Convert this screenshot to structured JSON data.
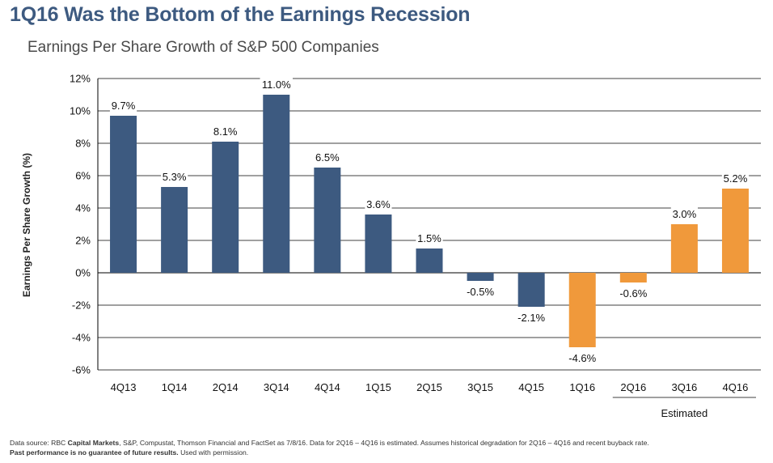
{
  "header": {
    "title": "1Q16 Was the Bottom of the Earnings Recession",
    "subtitle": "Earnings Per Share Growth of S&P 500 Companies"
  },
  "chart_data": {
    "type": "bar",
    "ylabel": "Earnings Per Share Growth (%)",
    "xlabel": "",
    "ylim": [
      -6,
      12
    ],
    "ytick_step": 2,
    "grid": "horizontal",
    "categories": [
      "4Q13",
      "1Q14",
      "2Q14",
      "3Q14",
      "4Q14",
      "1Q15",
      "2Q15",
      "3Q15",
      "4Q15",
      "1Q16",
      "2Q16",
      "3Q16",
      "4Q16"
    ],
    "values": [
      9.7,
      5.3,
      8.1,
      11.0,
      6.5,
      3.6,
      1.5,
      -0.5,
      -2.1,
      -4.6,
      -0.6,
      3.0,
      5.2
    ],
    "labels": [
      "9.7%",
      "5.3%",
      "8.1%",
      "11.0%",
      "6.5%",
      "3.6%",
      "1.5%",
      "-0.5%",
      "-2.1%",
      "-4.6%",
      "-0.6%",
      "3.0%",
      "5.2%"
    ],
    "actual_color": "#3d5a80",
    "estimated_color": "#f0993b",
    "estimated_from_index": 9,
    "estimated_bracket_from_index": 10,
    "estimated_label": "Estimated"
  },
  "footer": {
    "source_prefix": "Data source: RBC ",
    "source_bold": "Capital Markets",
    "source_rest": ", S&P, Compustat, Thomson Financial and FactSet as 7/8/16. Data for 2Q16 – 4Q16 is estimated. Assumes historical degradation for 2Q16 – 4Q16 and recent buyback rate.",
    "disclaimer_bold": "Past performance is no guarantee of future results.",
    "disclaimer_rest": " Used with permission."
  }
}
